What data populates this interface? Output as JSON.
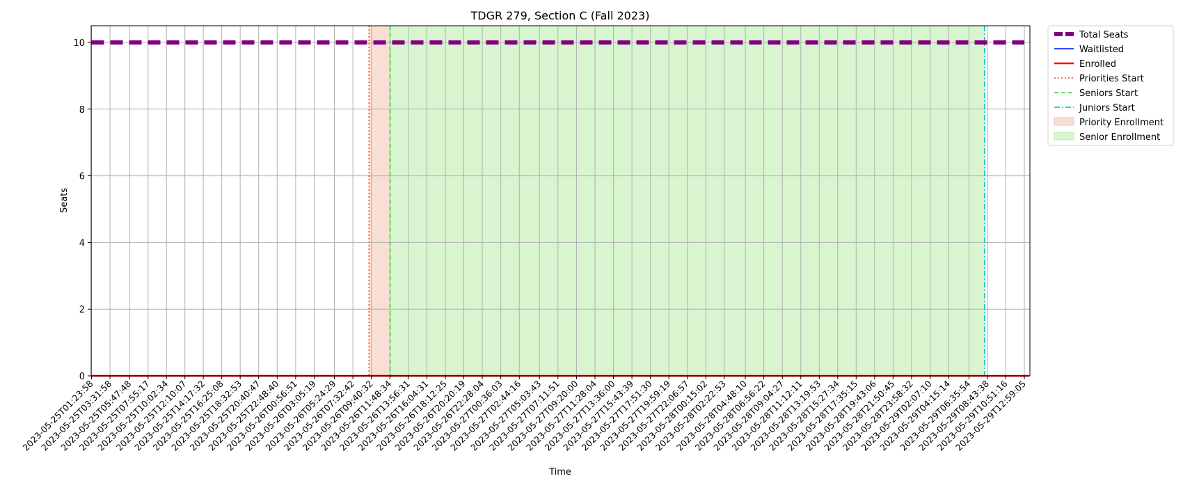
{
  "chart_data": {
    "type": "line",
    "title": "TDGR 279, Section C (Fall 2023)",
    "xlabel": "Time",
    "ylabel": "Seats",
    "ylim": [
      0,
      10.5
    ],
    "yticks": [
      0,
      2,
      4,
      6,
      8,
      10
    ],
    "grid": true,
    "legend_position": "outside-top-right",
    "x_ticks": [
      "2023-05-25T01:23:58",
      "2023-05-25T03:31:58",
      "2023-05-25T05:47:48",
      "2023-05-25T07:55:17",
      "2023-05-25T10:02:34",
      "2023-05-25T12:10:07",
      "2023-05-25T14:17:32",
      "2023-05-25T16:25:08",
      "2023-05-25T18:32:53",
      "2023-05-25T20:40:47",
      "2023-05-25T22:48:40",
      "2023-05-26T00:56:51",
      "2023-05-26T03:05:19",
      "2023-05-26T05:24:29",
      "2023-05-26T07:32:42",
      "2023-05-26T09:40:32",
      "2023-05-26T11:48:34",
      "2023-05-26T13:56:31",
      "2023-05-26T16:04:31",
      "2023-05-26T18:12:25",
      "2023-05-26T20:20:19",
      "2023-05-26T22:28:04",
      "2023-05-27T00:36:03",
      "2023-05-27T02:44:16",
      "2023-05-27T05:03:43",
      "2023-05-27T07:11:51",
      "2023-05-27T09:20:00",
      "2023-05-27T11:28:04",
      "2023-05-27T13:36:00",
      "2023-05-27T15:43:39",
      "2023-05-27T17:51:30",
      "2023-05-27T19:59:19",
      "2023-05-27T22:06:57",
      "2023-05-28T00:15:02",
      "2023-05-28T02:22:53",
      "2023-05-28T04:48:10",
      "2023-05-28T06:56:22",
      "2023-05-28T09:04:27",
      "2023-05-28T11:12:11",
      "2023-05-28T13:19:53",
      "2023-05-28T15:27:34",
      "2023-05-28T17:35:15",
      "2023-05-28T19:43:06",
      "2023-05-28T21:50:45",
      "2023-05-28T23:58:32",
      "2023-05-29T02:07:10",
      "2023-05-29T04:15:14",
      "2023-05-29T06:35:54",
      "2023-05-29T08:43:38",
      "2023-05-29T10:51:16",
      "2023-05-29T12:59:05"
    ],
    "x_range": [
      "2023-05-25T01:23:58",
      "2023-05-29T12:59:05"
    ],
    "series": [
      {
        "name": "Total Seats",
        "style": "dashed",
        "color": "#800080",
        "x": [
          "2023-05-25T01:23:58",
          "2023-05-29T12:59:05"
        ],
        "values": [
          10,
          10
        ]
      },
      {
        "name": "Waitlisted",
        "style": "solid",
        "color": "#0000ff",
        "x": [
          "2023-05-25T01:23:58",
          "2023-05-29T12:59:05"
        ],
        "values": [
          0,
          0
        ]
      },
      {
        "name": "Enrolled",
        "style": "solid",
        "color": "#ff0000",
        "x": [
          "2023-05-25T01:23:58",
          "2023-05-29T12:59:05"
        ],
        "values": [
          0,
          0
        ]
      }
    ],
    "vertical_lines": [
      {
        "name": "Priorities Start",
        "x": "2023-05-26T09:24:00",
        "style": "dotted",
        "color": "#ff4500"
      },
      {
        "name": "Seniors Start",
        "x": "2023-05-26T11:50:00",
        "style": "dashed",
        "color": "#32cd32"
      },
      {
        "name": "Juniors Start",
        "x": "2023-05-29T08:24:00",
        "style": "dashdot",
        "color": "#00bfbf"
      }
    ],
    "shaded_regions": [
      {
        "name": "Priority Enrollment",
        "x_start": "2023-05-26T09:24:00",
        "x_end": "2023-05-26T11:50:00",
        "color": "#f4c2ae"
      },
      {
        "name": "Senior Enrollment",
        "x_start": "2023-05-26T11:50:00",
        "x_end": "2023-05-29T08:24:00",
        "color": "#b8ecaa"
      }
    ]
  }
}
